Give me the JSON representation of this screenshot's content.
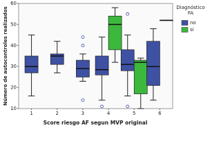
{
  "chart_data": {
    "type": "boxplot",
    "y_label": "Número de autocontroles realizados",
    "x_label": "Score riesgo AF segun MVP original",
    "categories": [
      "1",
      "2",
      "3",
      "4",
      "5",
      "6"
    ],
    "ylim": [
      10,
      60
    ],
    "yticks": [
      10,
      20,
      30,
      40,
      50,
      60
    ],
    "legend_title": [
      "Diagnóstico",
      "FA"
    ],
    "legend_position": "right",
    "series": [
      {
        "name": "no",
        "color": "#3f51a3",
        "values": [
          {
            "min": 16,
            "q1": 27,
            "median": 30,
            "q3": 35,
            "max": 45,
            "outliers": []
          },
          {
            "min": 27,
            "q1": 31,
            "median": 35,
            "q3": 36,
            "max": 42,
            "outliers": []
          },
          {
            "min": 23,
            "q1": 25,
            "median": 29,
            "q3": 33,
            "max": 36,
            "outliers": [
              40,
              44,
              14
            ]
          },
          {
            "min": 14,
            "q1": 26,
            "median": 28.5,
            "q3": 35,
            "max": 44,
            "outliers": [
              11
            ]
          },
          {
            "min": 16,
            "q1": 28,
            "median": 31,
            "q3": 38,
            "max": 45,
            "outliers": [
              55,
              11
            ]
          },
          {
            "min": 14,
            "q1": 21,
            "median": 30,
            "q3": 42,
            "max": 48,
            "outliers": []
          }
        ]
      },
      {
        "name": "si",
        "color": "#3cb93c",
        "values": [
          null,
          null,
          null,
          {
            "min": 32,
            "q1": 38,
            "median": 50,
            "q3": 54,
            "max": 58,
            "outliers": []
          },
          {
            "min": 10,
            "q1": 17,
            "median": 32,
            "q3": 33,
            "max": 34,
            "outliers": []
          },
          {
            "min": 52,
            "q1": 52,
            "median": 52,
            "q3": 52,
            "max": 52,
            "outliers": []
          }
        ]
      }
    ]
  }
}
